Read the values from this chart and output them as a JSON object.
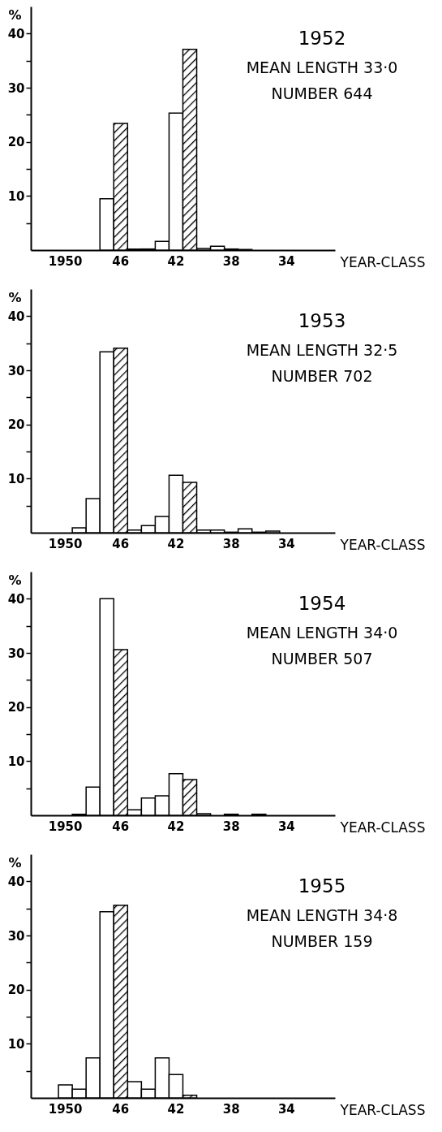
{
  "chart_data": [
    {
      "type": "bar",
      "title": "1952",
      "annotations": [
        "MEAN LENGTH 33·0",
        "NUMBER 644"
      ],
      "xlabel": "YEAR-CLASS",
      "ylabel": "%",
      "categories": [
        null,
        null,
        "1950",
        null,
        null,
        null,
        "46",
        null,
        null,
        null,
        "42",
        null,
        null,
        null,
        "38",
        null,
        null,
        null,
        "34",
        null,
        null,
        null
      ],
      "series": [
        {
          "color": "#ffffff",
          "values": [
            null,
            null,
            null,
            null,
            null,
            9.5,
            null,
            0.2,
            0.2,
            1.6,
            25.3,
            null,
            0.3,
            0.7,
            0.2,
            0.1,
            null,
            null,
            null,
            null,
            null,
            null
          ]
        },
        {
          "color": "#000000",
          "values": [
            null,
            null,
            null,
            null,
            null,
            null,
            23.4,
            null,
            null,
            null,
            null,
            37.1,
            null,
            null,
            null,
            null,
            null,
            null,
            null,
            null,
            null,
            null
          ]
        }
      ],
      "ylim": [
        0,
        45
      ],
      "yticks": [
        {
          "value": 5,
          "label": null
        },
        10,
        {
          "value": 15,
          "label": null
        },
        20,
        {
          "value": 25,
          "label": null
        },
        30,
        {
          "value": 35,
          "label": null
        },
        40
      ]
    },
    {
      "type": "bar",
      "title": "1953",
      "annotations": [
        "MEAN LENGTH 32·5",
        "NUMBER 702"
      ],
      "xlabel": "YEAR-CLASS",
      "ylabel": "%",
      "categories": [
        null,
        null,
        "1950",
        null,
        null,
        null,
        "46",
        null,
        null,
        null,
        "42",
        null,
        null,
        null,
        "38",
        null,
        null,
        null,
        "34",
        null,
        null,
        null
      ],
      "series": [
        {
          "color": "#ffffff",
          "values": [
            null,
            null,
            null,
            0.9,
            6.3,
            33.4,
            null,
            0.5,
            1.3,
            3.0,
            10.6,
            null,
            0.5,
            0.5,
            0.1,
            0.7,
            0.1,
            0.3,
            null,
            null,
            null,
            null
          ]
        },
        {
          "color": "#000000",
          "values": [
            null,
            null,
            null,
            null,
            null,
            null,
            34.1,
            null,
            null,
            null,
            null,
            9.3,
            null,
            null,
            null,
            null,
            null,
            null,
            null,
            null,
            null,
            null
          ]
        }
      ],
      "ylim": [
        0,
        45
      ],
      "yticks": [
        {
          "value": 5,
          "label": null
        },
        10,
        {
          "value": 15,
          "label": null
        },
        20,
        {
          "value": 25,
          "label": null
        },
        30,
        {
          "value": 35,
          "label": null
        },
        40
      ]
    },
    {
      "type": "bar",
      "title": "1954",
      "annotations": [
        "MEAN LENGTH 34·0",
        "NUMBER 507"
      ],
      "xlabel": "YEAR-CLASS",
      "ylabel": "%",
      "categories": [
        null,
        null,
        "1950",
        null,
        null,
        null,
        "46",
        null,
        null,
        null,
        "42",
        null,
        null,
        null,
        "38",
        null,
        null,
        null,
        "34",
        null,
        null,
        null
      ],
      "series": [
        {
          "color": "#ffffff",
          "values": [
            null,
            null,
            null,
            0.2,
            5.2,
            40,
            null,
            1.0,
            3.2,
            3.6,
            7.7,
            null,
            0.3,
            null,
            0.2,
            null,
            0.2,
            null,
            null,
            null,
            null,
            null
          ]
        },
        {
          "color": "#000000",
          "values": [
            null,
            null,
            null,
            null,
            null,
            null,
            30.6,
            null,
            null,
            null,
            null,
            6.6,
            null,
            null,
            null,
            null,
            null,
            null,
            null,
            null,
            null,
            null
          ]
        }
      ],
      "ylim": [
        0,
        45
      ],
      "yticks": [
        {
          "value": 5,
          "label": null
        },
        10,
        {
          "value": 15,
          "label": null
        },
        20,
        {
          "value": 25,
          "label": null
        },
        30,
        {
          "value": 35,
          "label": null
        },
        40
      ]
    },
    {
      "type": "bar",
      "title": "1955",
      "annotations": [
        "MEAN LENGTH 34·8",
        "NUMBER 159"
      ],
      "xlabel": "YEAR-CLASS",
      "ylabel": "%",
      "categories": [
        null,
        null,
        "1950",
        null,
        null,
        null,
        "46",
        null,
        null,
        null,
        "42",
        null,
        null,
        null,
        "38",
        null,
        null,
        null,
        "34",
        null,
        null,
        null
      ],
      "series": [
        {
          "color": "#ffffff",
          "values": [
            null,
            null,
            2.4,
            1.6,
            7.4,
            34.4,
            null,
            3.0,
            1.6,
            7.4,
            4.3,
            null,
            null,
            null,
            null,
            null,
            null,
            null,
            null,
            null,
            null,
            null
          ]
        },
        {
          "color": "#000000",
          "values": [
            null,
            null,
            null,
            null,
            null,
            null,
            35.6,
            null,
            null,
            null,
            null,
            0.5,
            null,
            null,
            null,
            null,
            null,
            null,
            null,
            null,
            null,
            null
          ]
        }
      ],
      "ylim": [
        0,
        45
      ],
      "yticks": [
        {
          "value": 5,
          "label": null
        },
        10,
        {
          "value": 15,
          "label": null
        },
        20,
        {
          "value": 25,
          "label": null
        },
        30,
        {
          "value": 35,
          "label": null
        },
        40
      ]
    }
  ]
}
